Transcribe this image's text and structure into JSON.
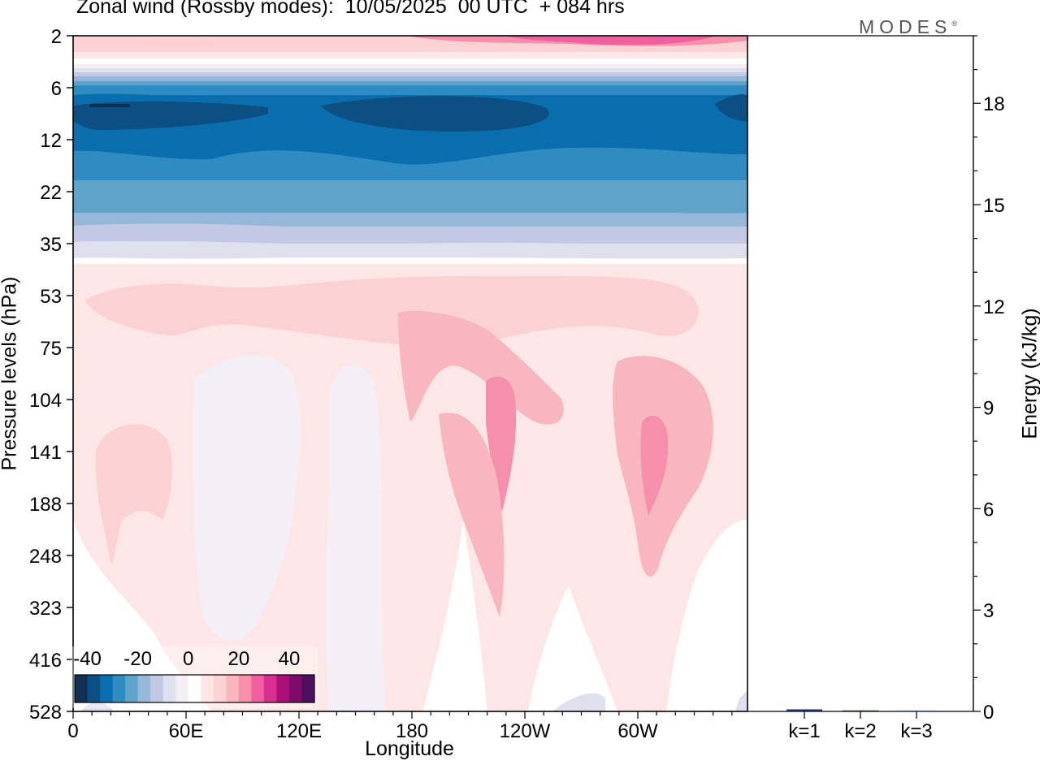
{
  "chart_data": [
    {
      "type": "heatmap",
      "title": "Zonal wind (Rossby modes):  10/05/2025  00 UTC  + 084 hrs",
      "xlabel": "Longitude",
      "ylabel": "Pressure levels (hPa)",
      "x_ticks": [
        "0",
        "60E",
        "120E",
        "180",
        "120W",
        "60W"
      ],
      "y_ticks": [
        "2",
        "6",
        "12",
        "22",
        "35",
        "53",
        "75",
        "104",
        "141",
        "188",
        "248",
        "323",
        "416",
        "528"
      ],
      "colorbar": {
        "tick_labels": [
          "-40",
          "-20",
          "0",
          "20",
          "40"
        ],
        "levels": [
          -45,
          -40,
          -35,
          -30,
          -25,
          -20,
          -15,
          -10,
          -5,
          0,
          5,
          10,
          15,
          20,
          25,
          30,
          35,
          40,
          45,
          50
        ],
        "colors": [
          "#0f3050",
          "#0b4f83",
          "#0a6dad",
          "#2f8cc2",
          "#60a4cc",
          "#96b7da",
          "#c3c9e2",
          "#e0dfee",
          "#f4eff7",
          "#ffffff",
          "#fde6e6",
          "#fbd1d4",
          "#f8b6be",
          "#f58fac",
          "#ee60a0",
          "#d82f8e",
          "#ab1078",
          "#7e0a6c",
          "#4e0f5e"
        ]
      }
    },
    {
      "type": "bar",
      "ylabel": "Energy (kJ/kg)",
      "categories": [
        "k=1",
        "k=2",
        "k=3"
      ],
      "values": [
        0.06,
        0.03,
        0.02
      ],
      "ylim": [
        0,
        20
      ],
      "y_ticks": [
        "0",
        "3",
        "6",
        "9",
        "12",
        "15",
        "18"
      ],
      "bar_color": "#1a2a6c"
    }
  ],
  "brand": {
    "name": "MODES",
    "mark": "®"
  }
}
